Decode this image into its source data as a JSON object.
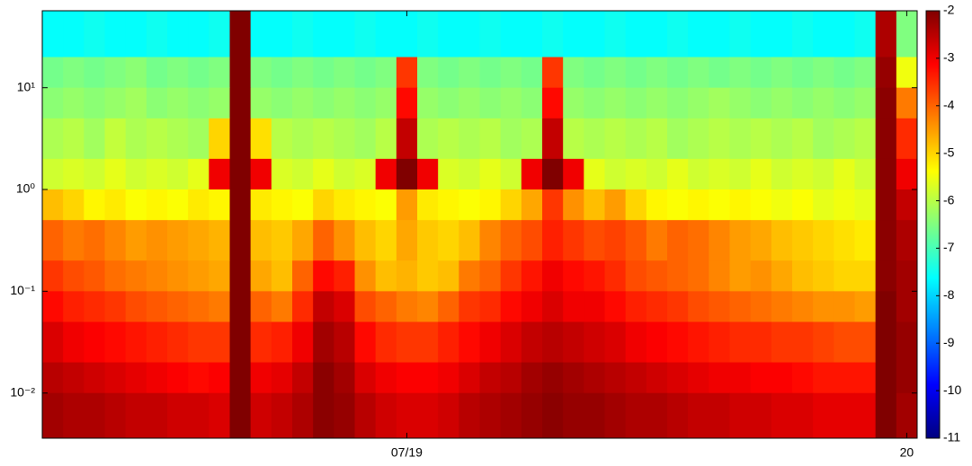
{
  "chart_data": {
    "type": "heatmap",
    "colormap": "jet",
    "log_y": true,
    "categories": [
      null,
      null,
      null,
      null,
      null,
      null,
      null,
      null,
      null,
      null,
      null,
      null,
      null,
      null,
      null,
      null,
      null,
      "07/19",
      null,
      null,
      null,
      null,
      null,
      null,
      null,
      null,
      null,
      null,
      null,
      null,
      null,
      null,
      null,
      null,
      null,
      null,
      null,
      null,
      null,
      null,
      null,
      "20"
    ],
    "ybins": [
      57,
      20,
      10,
      5,
      2,
      1,
      0.5,
      0.2,
      0.1,
      0.05,
      0.02,
      0.01,
      0.0036
    ],
    "ylim": [
      0.0036,
      57
    ],
    "yticks": [
      {
        "value": 0.01,
        "label": "10⁻²"
      },
      {
        "value": 0.1,
        "label": "10⁻¹"
      },
      {
        "value": 1,
        "label": "10⁰"
      },
      {
        "value": 10,
        "label": "10¹"
      }
    ],
    "clim": [
      -11,
      -2
    ],
    "cticks": [
      -2,
      -3,
      -4,
      -5,
      -6,
      -7,
      -8,
      -9,
      -10,
      -11
    ],
    "z": [
      [
        -7.6,
        -7.6,
        -7.5,
        -7.6,
        -7.6,
        -7.5,
        -7.6,
        -7.6,
        -7.5,
        -2,
        -7.6,
        -7.6,
        -7.5,
        -7.6,
        -7.6,
        -7.5,
        -7.6,
        -7.6,
        -7.5,
        -7.6,
        -7.6,
        -7.5,
        -7.6,
        -7.6,
        -7.5,
        -7.6,
        -7.6,
        -7.5,
        -7.6,
        -7.6,
        -7.5,
        -7.6,
        -7.6,
        -7.5,
        -7.6,
        -7.6,
        -7.5,
        -7.6,
        -7.6,
        -7.5,
        -2.4,
        -6.5
      ],
      [
        -6.6,
        -6.5,
        -6.6,
        -6.5,
        -6.4,
        -6.6,
        -6.5,
        -6.6,
        -6.5,
        -2,
        -6.5,
        -6.6,
        -6.5,
        -6.6,
        -6.5,
        -6.6,
        -6.5,
        -3.6,
        -6.5,
        -6.6,
        -6.5,
        -6.6,
        -6.5,
        -6.6,
        -3.6,
        -6.5,
        -6.6,
        -6.5,
        -6.6,
        -6.5,
        -6.6,
        -6.5,
        -6.6,
        -6.5,
        -6.6,
        -6.5,
        -6.6,
        -6.5,
        -6.6,
        -6.5,
        -2.2,
        -5.5
      ],
      [
        -6.4,
        -6.3,
        -6.4,
        -6.3,
        -6.2,
        -6.4,
        -6.3,
        -6.4,
        -6.3,
        -2,
        -6.3,
        -6.4,
        -6.3,
        -6.4,
        -6.3,
        -6.4,
        -6.3,
        -3.2,
        -6.3,
        -6.4,
        -6.3,
        -6.4,
        -6.3,
        -6.4,
        -3.2,
        -6.3,
        -6.4,
        -6.3,
        -6.4,
        -6.3,
        -6.4,
        -6.3,
        -6.2,
        -6.3,
        -6.4,
        -6.3,
        -6.4,
        -6.3,
        -6.4,
        -6.3,
        -2.1,
        -4.2
      ],
      [
        -6.1,
        -6.0,
        -6.2,
        -5.9,
        -6.1,
        -6.0,
        -6.1,
        -6.2,
        -5.0,
        -2,
        -5.1,
        -6.0,
        -6.1,
        -6.0,
        -6.1,
        -6.2,
        -6.0,
        -2.6,
        -6.1,
        -6.0,
        -6.1,
        -6.0,
        -6.2,
        -6.1,
        -2.6,
        -6.0,
        -6.1,
        -6.0,
        -6.1,
        -6.0,
        -6.2,
        -6.1,
        -6.0,
        -6.1,
        -6.0,
        -6.1,
        -6.0,
        -6.2,
        -6.1,
        -6.0,
        -2.1,
        -3.5
      ],
      [
        -5.8,
        -5.7,
        -5.8,
        -5.6,
        -5.8,
        -5.7,
        -5.8,
        -5.6,
        -3.0,
        -2,
        -3.0,
        -5.7,
        -5.8,
        -5.6,
        -5.8,
        -5.7,
        -3.0,
        -2.0,
        -3.0,
        -5.7,
        -5.8,
        -5.6,
        -5.8,
        -3.0,
        -2.0,
        -3.0,
        -5.6,
        -5.8,
        -5.7,
        -5.8,
        -5.6,
        -5.8,
        -5.7,
        -5.8,
        -5.6,
        -5.8,
        -5.7,
        -5.8,
        -5.6,
        -5.8,
        -2.1,
        -3.0
      ],
      [
        -4.8,
        -5.0,
        -5.3,
        -5.2,
        -5.4,
        -5.3,
        -5.4,
        -5.2,
        -5.3,
        -2,
        -5.2,
        -5.3,
        -5.4,
        -5.0,
        -5.2,
        -5.3,
        -5.4,
        -4.5,
        -5.2,
        -5.3,
        -5.4,
        -5.3,
        -5.0,
        -4.6,
        -3.6,
        -4.4,
        -4.8,
        -4.5,
        -5.0,
        -5.3,
        -5.4,
        -5.3,
        -5.4,
        -5.3,
        -5.4,
        -5.5,
        -5.4,
        -5.6,
        -5.5,
        -5.6,
        -2.1,
        -2.6
      ],
      [
        -4.0,
        -4.2,
        -4.1,
        -4.3,
        -4.5,
        -4.4,
        -4.5,
        -4.6,
        -4.7,
        -2,
        -4.8,
        -4.9,
        -4.6,
        -4.0,
        -4.4,
        -4.8,
        -5.0,
        -4.6,
        -4.9,
        -5.0,
        -4.8,
        -4.3,
        -4.0,
        -3.8,
        -3.4,
        -3.6,
        -3.8,
        -3.7,
        -3.9,
        -4.2,
        -4.0,
        -4.1,
        -4.3,
        -4.5,
        -4.6,
        -4.8,
        -4.9,
        -5.0,
        -5.1,
        -5.2,
        -2.1,
        -2.4
      ],
      [
        -3.6,
        -3.8,
        -3.9,
        -4.1,
        -4.2,
        -4.3,
        -4.4,
        -4.5,
        -4.6,
        -2,
        -4.6,
        -4.8,
        -4.0,
        -3.2,
        -3.4,
        -4.4,
        -4.8,
        -4.7,
        -4.9,
        -4.8,
        -4.2,
        -4.0,
        -3.6,
        -3.3,
        -3.0,
        -3.2,
        -3.3,
        -3.5,
        -3.8,
        -3.9,
        -4.0,
        -4.1,
        -4.3,
        -4.5,
        -4.4,
        -4.6,
        -4.8,
        -4.9,
        -5.0,
        -5.0,
        -2.1,
        -2.3
      ],
      [
        -3.2,
        -3.4,
        -3.5,
        -3.6,
        -3.8,
        -3.9,
        -4.0,
        -4.1,
        -4.2,
        -2,
        -4.0,
        -4.2,
        -3.5,
        -2.6,
        -2.8,
        -3.8,
        -4.0,
        -4.2,
        -4.3,
        -4.0,
        -3.6,
        -3.5,
        -3.2,
        -3.0,
        -2.8,
        -3.0,
        -3.0,
        -3.2,
        -3.4,
        -3.5,
        -3.6,
        -3.8,
        -3.9,
        -4.0,
        -4.1,
        -4.2,
        -4.3,
        -4.4,
        -4.4,
        -4.5,
        -2.0,
        -2.3
      ],
      [
        -2.8,
        -3.0,
        -3.1,
        -3.2,
        -3.3,
        -3.4,
        -3.5,
        -3.6,
        -3.6,
        -2,
        -3.5,
        -3.4,
        -3.0,
        -2.3,
        -2.5,
        -3.2,
        -3.5,
        -3.6,
        -3.6,
        -3.4,
        -3.2,
        -3.0,
        -2.8,
        -2.6,
        -2.5,
        -2.6,
        -2.7,
        -2.8,
        -3.0,
        -3.1,
        -3.2,
        -3.3,
        -3.4,
        -3.5,
        -3.5,
        -3.6,
        -3.6,
        -3.7,
        -3.8,
        -3.8,
        -2.0,
        -2.2
      ],
      [
        -2.5,
        -2.6,
        -2.7,
        -2.8,
        -2.9,
        -3.0,
        -3.1,
        -3.2,
        -3.1,
        -2,
        -3.0,
        -2.9,
        -2.6,
        -2.1,
        -2.3,
        -2.8,
        -3.0,
        -3.1,
        -3.1,
        -3.0,
        -2.8,
        -2.6,
        -2.5,
        -2.3,
        -2.2,
        -2.3,
        -2.4,
        -2.5,
        -2.6,
        -2.7,
        -2.8,
        -2.9,
        -3.0,
        -3.0,
        -3.1,
        -3.1,
        -3.2,
        -3.3,
        -3.3,
        -3.3,
        -2.0,
        -2.2
      ],
      [
        -2.3,
        -2.4,
        -2.4,
        -2.5,
        -2.6,
        -2.6,
        -2.7,
        -2.7,
        -2.8,
        -2,
        -2.7,
        -2.6,
        -2.4,
        -2.1,
        -2.2,
        -2.5,
        -2.7,
        -2.8,
        -2.8,
        -2.7,
        -2.5,
        -2.4,
        -2.3,
        -2.2,
        -2.1,
        -2.2,
        -2.2,
        -2.3,
        -2.4,
        -2.4,
        -2.5,
        -2.6,
        -2.6,
        -2.7,
        -2.7,
        -2.8,
        -2.8,
        -2.9,
        -2.9,
        -2.9,
        -2.0,
        -2.3
      ]
    ]
  }
}
